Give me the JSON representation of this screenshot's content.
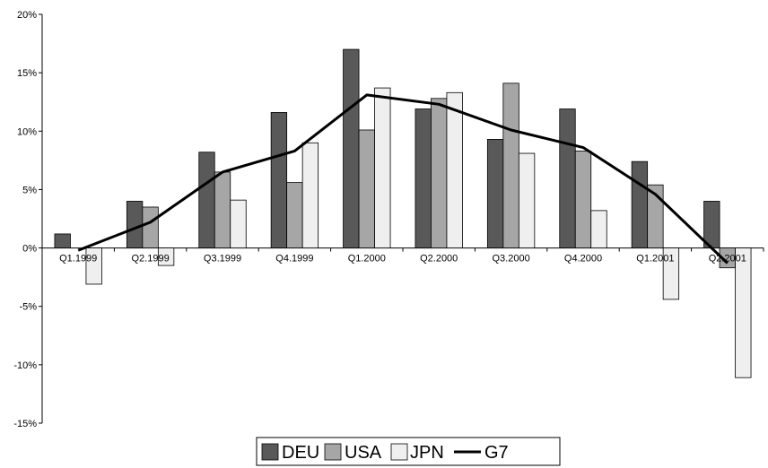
{
  "chart_data": {
    "type": "bar",
    "categories": [
      "Q1.1999",
      "Q2.1999",
      "Q3.1999",
      "Q4.1999",
      "Q1.2000",
      "Q2.2000",
      "Q3.2000",
      "Q4.2000",
      "Q1.2001",
      "Q2.2001"
    ],
    "series": [
      {
        "name": "DEU",
        "kind": "bar",
        "color": "#595959",
        "values": [
          1.2,
          4.0,
          8.2,
          11.6,
          17.0,
          11.9,
          9.3,
          11.9,
          7.4,
          4.0
        ]
      },
      {
        "name": "USA",
        "kind": "bar",
        "color": "#a6a6a6",
        "values": [
          0.0,
          3.5,
          6.5,
          5.6,
          10.1,
          12.8,
          14.1,
          8.3,
          5.4,
          -1.7
        ]
      },
      {
        "name": "JPN",
        "kind": "bar",
        "color": "#efefef",
        "values": [
          -3.1,
          -1.5,
          4.1,
          9.0,
          13.7,
          13.3,
          8.1,
          3.2,
          -4.4,
          -11.1
        ]
      },
      {
        "name": "G7",
        "kind": "line",
        "color": "#000000",
        "values": [
          -0.2,
          2.2,
          6.5,
          8.3,
          13.1,
          12.3,
          10.1,
          8.6,
          4.6,
          -1.3
        ]
      }
    ],
    "ylim": [
      -15,
      20
    ],
    "yticks": [
      "20%",
      "15%",
      "10%",
      "5%",
      "0%",
      "-5%",
      "-10%",
      "-15%"
    ],
    "ytick_values": [
      20,
      15,
      10,
      5,
      0,
      -5,
      -10,
      -15
    ],
    "legend_position": "bottom",
    "grid": false
  }
}
